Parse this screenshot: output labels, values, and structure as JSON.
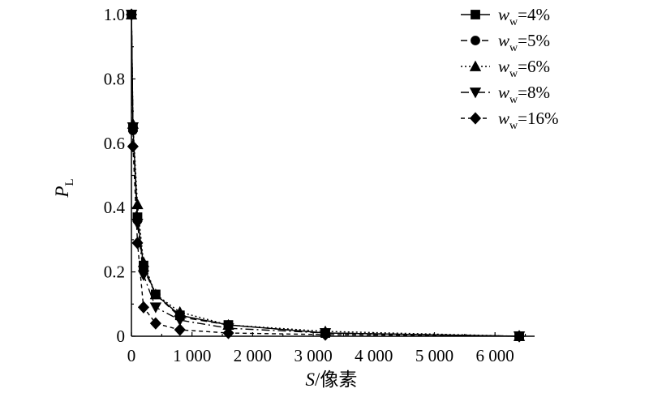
{
  "chart_data": {
    "type": "line",
    "xlabel": "S/像素",
    "xlabel_var": "S",
    "xlabel_unit": "/像素",
    "ylabel": "P_L",
    "ylabel_var": "P",
    "ylabel_sub": "L",
    "xlim": [
      0,
      6600
    ],
    "ylim": [
      0,
      1.0
    ],
    "xticks": [
      0,
      1000,
      2000,
      3000,
      4000,
      5000,
      6000
    ],
    "xtick_labels": [
      "0",
      "1 000",
      "2 000",
      "3 000",
      "4 000",
      "5 000",
      "6 000"
    ],
    "yticks": [
      0,
      0.2,
      0.4,
      0.6,
      0.8,
      1.0
    ],
    "ytick_labels": [
      "0",
      "0.2",
      "0.4",
      "0.6",
      "0.8",
      "1.0"
    ],
    "legend_position": "top-right",
    "grid": false,
    "x": [
      1,
      25,
      100,
      200,
      400,
      800,
      1600,
      3200,
      6400
    ],
    "series": [
      {
        "name": "w_w=4%",
        "legend_var": "w",
        "legend_sub": "w",
        "legend_value": "=4%",
        "marker": "square",
        "dash": "none",
        "values": [
          1.0,
          0.65,
          0.37,
          0.22,
          0.13,
          0.065,
          0.035,
          0.01,
          0.0
        ]
      },
      {
        "name": "w_w=5%",
        "legend_var": "w",
        "legend_sub": "w",
        "legend_value": "=5%",
        "marker": "circle",
        "dash": "8,5",
        "values": [
          1.0,
          0.64,
          0.36,
          0.21,
          0.13,
          0.06,
          0.035,
          0.01,
          0.0
        ]
      },
      {
        "name": "w_w=6%",
        "legend_var": "w",
        "legend_sub": "w",
        "legend_value": "=6%",
        "marker": "triangle-up",
        "dash": "2,3",
        "values": [
          1.0,
          0.66,
          0.41,
          0.23,
          0.13,
          0.075,
          0.035,
          0.015,
          0.0
        ]
      },
      {
        "name": "w_w=8%",
        "legend_var": "w",
        "legend_sub": "w",
        "legend_value": "=8%",
        "marker": "triangle-down",
        "dash": "10,4,2,4",
        "values": [
          1.0,
          0.65,
          0.35,
          0.19,
          0.09,
          0.05,
          0.025,
          0.01,
          0.0
        ]
      },
      {
        "name": "w_w=16%",
        "legend_var": "w",
        "legend_sub": "w",
        "legend_value": "=16%",
        "marker": "diamond",
        "dash": "5,4",
        "values": [
          1.0,
          0.59,
          0.29,
          0.09,
          0.04,
          0.02,
          0.01,
          0.005,
          0.0
        ]
      }
    ]
  }
}
